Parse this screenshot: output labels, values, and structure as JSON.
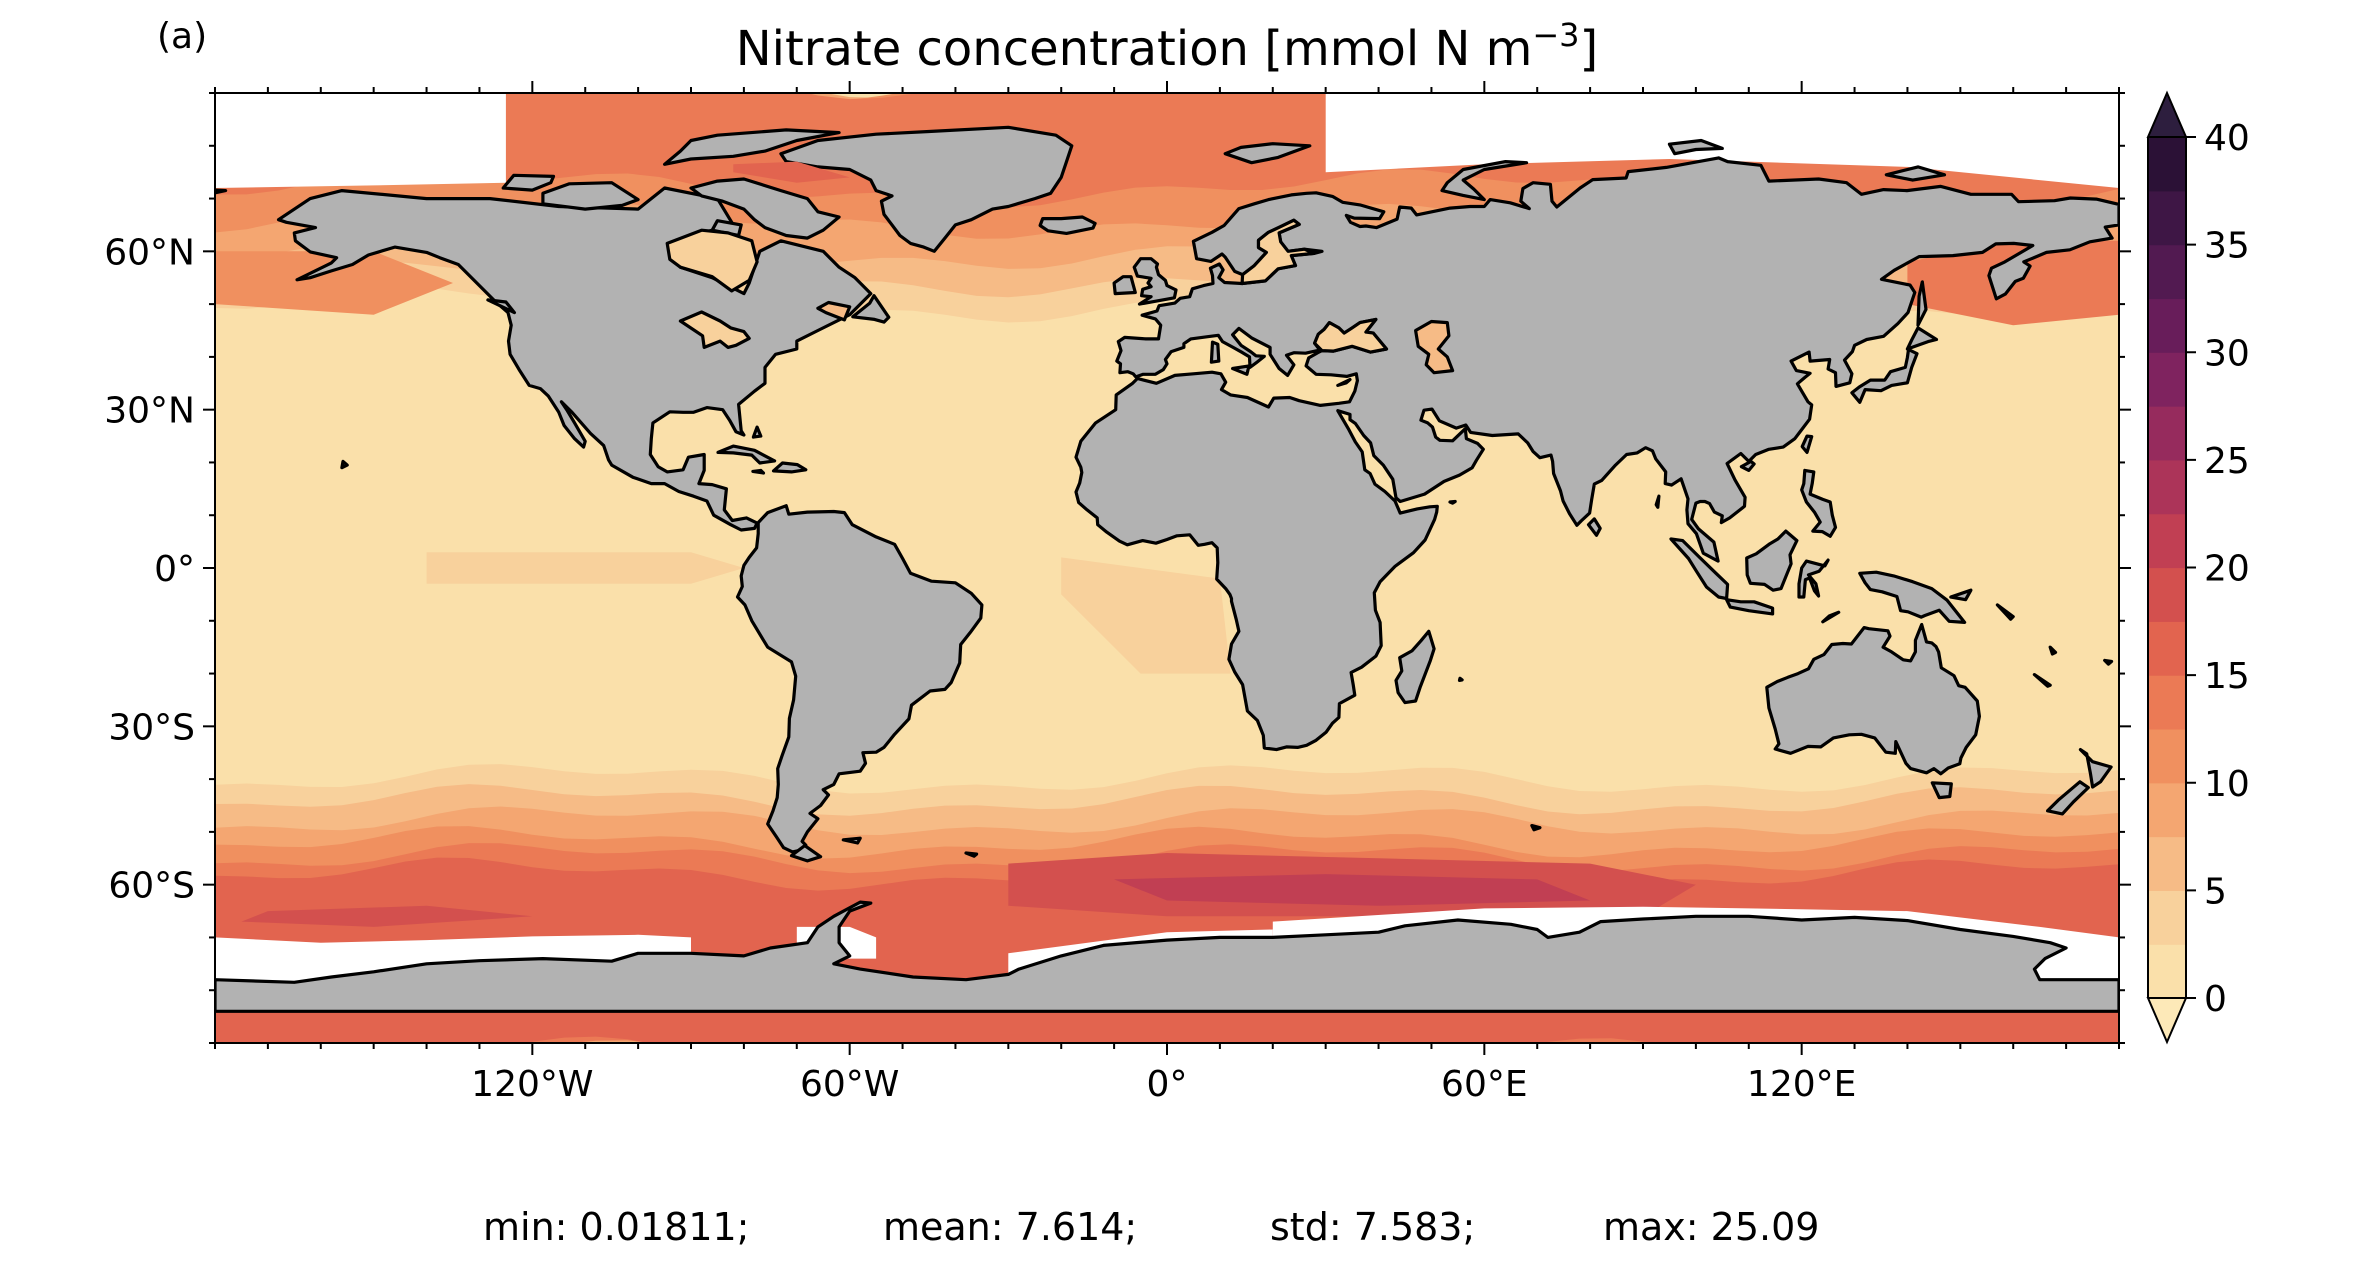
{
  "panel_label": "(a)",
  "title": {
    "main": "Nitrate concentration [mmol N m",
    "superscript": "−3",
    "end": "]"
  },
  "map": {
    "projection": "PlateCarree",
    "lon_range": [
      -180,
      180
    ],
    "lat_range": [
      -90,
      90
    ],
    "land_color": "#b2b2b2",
    "coastline_color": "#000000",
    "missing_color": "#ffffff"
  },
  "axes": {
    "lat_ticks": [
      {
        "value": 60,
        "label": "60°N"
      },
      {
        "value": 30,
        "label": "30°N"
      },
      {
        "value": 0,
        "label": "0°"
      },
      {
        "value": -30,
        "label": "30°S"
      },
      {
        "value": -60,
        "label": "60°S"
      }
    ],
    "lon_ticks": [
      {
        "value": -120,
        "label": "120°W"
      },
      {
        "value": -60,
        "label": "60°W"
      },
      {
        "value": 0,
        "label": "0°"
      },
      {
        "value": 60,
        "label": "60°E"
      },
      {
        "value": 120,
        "label": "120°E"
      }
    ]
  },
  "colorbar": {
    "min": 0,
    "max": 40,
    "step": 2.5,
    "extend": "both",
    "tick_labels": [
      "0",
      "5",
      "10",
      "15",
      "20",
      "25",
      "30",
      "35",
      "40"
    ],
    "tick_values": [
      0,
      5,
      10,
      15,
      20,
      25,
      30,
      35,
      40
    ],
    "colors": [
      "#fae0aa",
      "#f8d19c",
      "#f6bb86",
      "#f4a671",
      "#f0905f",
      "#eb7a55",
      "#e2644f",
      "#d3504e",
      "#c13f53",
      "#ac3459",
      "#962b5d",
      "#7f235f",
      "#681d5a",
      "#521a51",
      "#3e1645",
      "#2b1136"
    ],
    "under_color": "#fde9b8",
    "over_color": "#2d1e3e"
  },
  "stats": {
    "min": "min: 0.01811;",
    "mean": "mean: 7.614;",
    "std": "std: 7.583;",
    "max": "max: 25.09"
  }
}
